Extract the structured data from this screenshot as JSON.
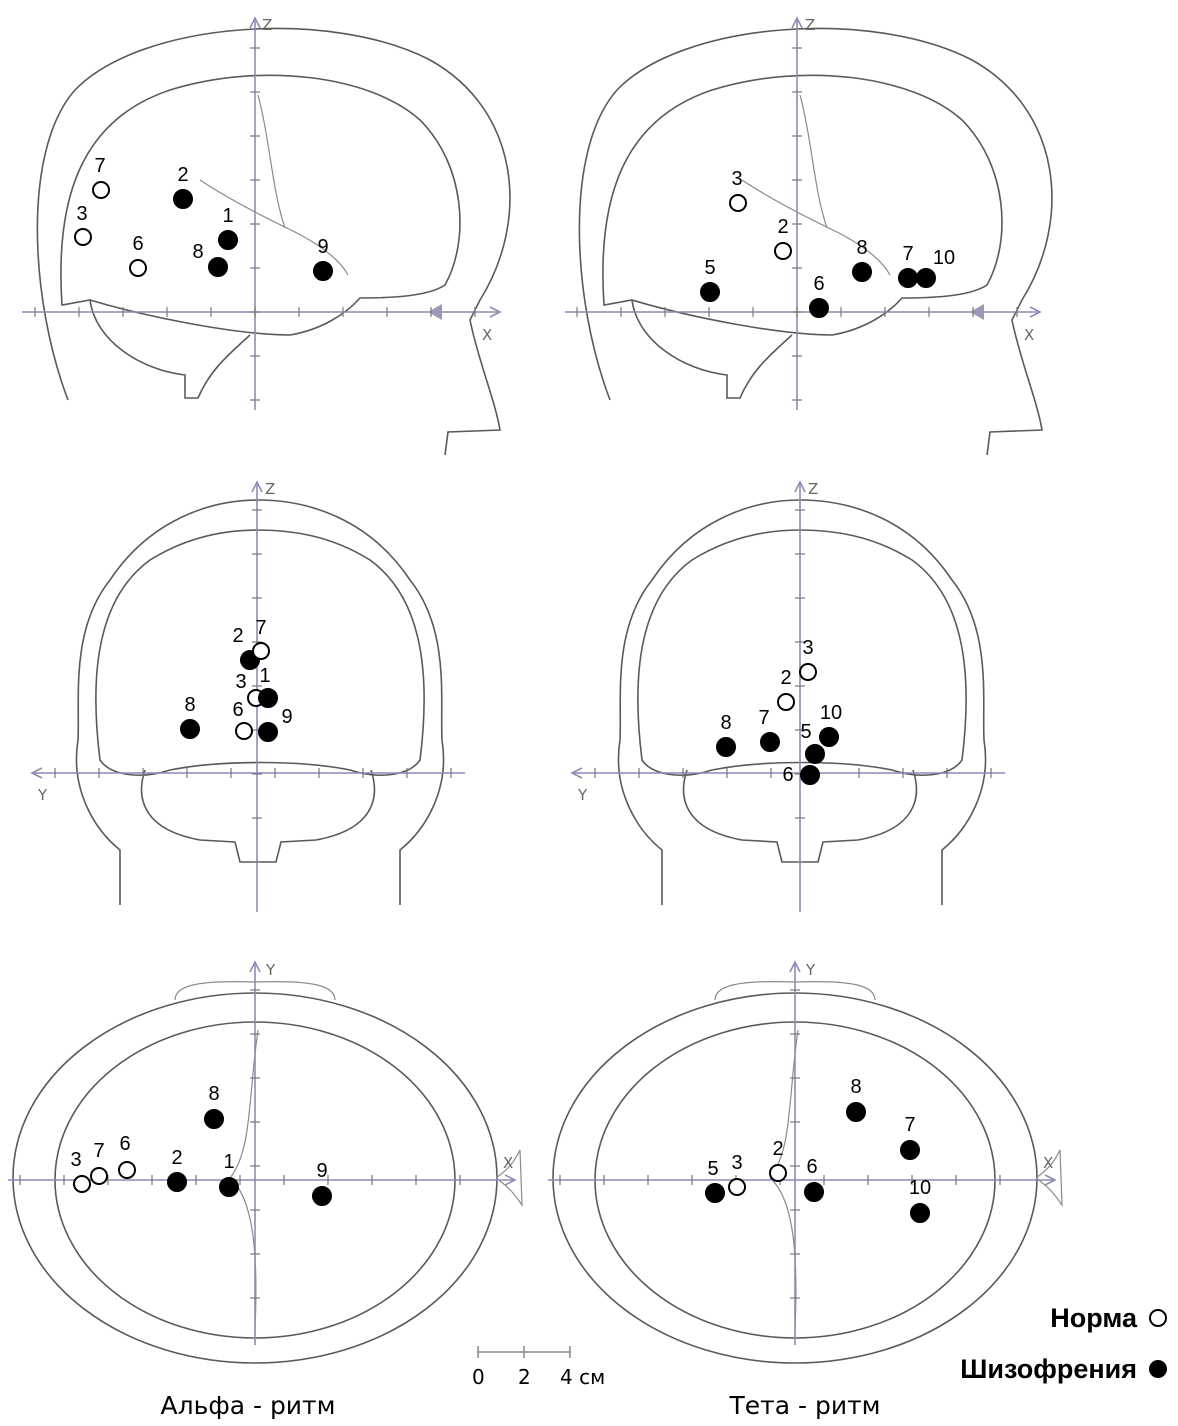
{
  "panels": [
    {
      "name": "alpha",
      "caption": "Альфа - ритм"
    },
    {
      "name": "theta",
      "caption": "Тета - ритм"
    }
  ],
  "axes": {
    "x": "X",
    "y": "Y",
    "z": "Z"
  },
  "legend": {
    "norm": "Норма",
    "schizo": "Шизофрения"
  },
  "scale": {
    "labels": [
      "0",
      "2",
      "4 см"
    ]
  },
  "markers": {
    "alpha": {
      "sagittal": [
        {
          "n": "7",
          "t": "norm"
        },
        {
          "n": "3",
          "t": "norm"
        },
        {
          "n": "6",
          "t": "norm"
        },
        {
          "n": "2",
          "t": "schizo"
        },
        {
          "n": "1",
          "t": "schizo"
        },
        {
          "n": "8",
          "t": "schizo"
        },
        {
          "n": "9",
          "t": "schizo"
        }
      ],
      "coronal": [
        {
          "n": "2",
          "t": "schizo"
        },
        {
          "n": "7",
          "t": "norm"
        },
        {
          "n": "3",
          "t": "norm"
        },
        {
          "n": "1",
          "t": "schizo"
        },
        {
          "n": "8",
          "t": "schizo"
        },
        {
          "n": "6",
          "t": "norm"
        },
        {
          "n": "9",
          "t": "schizo"
        }
      ],
      "axial": [
        {
          "n": "8",
          "t": "schizo"
        },
        {
          "n": "3",
          "t": "norm"
        },
        {
          "n": "7",
          "t": "norm"
        },
        {
          "n": "6",
          "t": "norm"
        },
        {
          "n": "2",
          "t": "schizo"
        },
        {
          "n": "1",
          "t": "schizo"
        },
        {
          "n": "9",
          "t": "schizo"
        }
      ]
    },
    "theta": {
      "sagittal": [
        {
          "n": "3",
          "t": "norm"
        },
        {
          "n": "2",
          "t": "norm"
        },
        {
          "n": "8",
          "t": "schizo"
        },
        {
          "n": "7",
          "t": "schizo"
        },
        {
          "n": "10",
          "t": "schizo"
        },
        {
          "n": "5",
          "t": "schizo"
        },
        {
          "n": "6",
          "t": "schizo"
        }
      ],
      "coronal": [
        {
          "n": "3",
          "t": "norm"
        },
        {
          "n": "2",
          "t": "norm"
        },
        {
          "n": "8",
          "t": "schizo"
        },
        {
          "n": "7",
          "t": "schizo"
        },
        {
          "n": "10",
          "t": "schizo"
        },
        {
          "n": "5",
          "t": "schizo"
        },
        {
          "n": "6",
          "t": "schizo"
        }
      ],
      "axial": [
        {
          "n": "8",
          "t": "schizo"
        },
        {
          "n": "7",
          "t": "schizo"
        },
        {
          "n": "5",
          "t": "schizo"
        },
        {
          "n": "3",
          "t": "norm"
        },
        {
          "n": "2",
          "t": "norm"
        },
        {
          "n": "6",
          "t": "schizo"
        },
        {
          "n": "10",
          "t": "schizo"
        }
      ]
    }
  }
}
